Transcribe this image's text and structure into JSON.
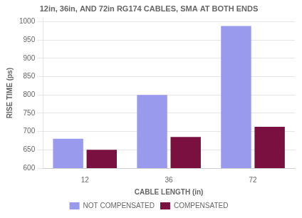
{
  "chart_data": {
    "type": "bar",
    "title": "12in, 36in, AND 72in RG174 CABLES, SMA AT BOTH ENDS",
    "xlabel": "CABLE LENGTH (in)",
    "ylabel": "RISE TIME (ps)",
    "categories": [
      "12",
      "36",
      "72"
    ],
    "series": [
      {
        "name": "NOT COMPENSATED",
        "color": "#9999ee",
        "values": [
          680,
          800,
          988
        ]
      },
      {
        "name": "COMPENSATED",
        "color": "#7a1040",
        "values": [
          650,
          685,
          713
        ]
      }
    ],
    "ylim": [
      600,
      1010
    ],
    "yticks": [
      600,
      650,
      700,
      750,
      800,
      850,
      900,
      950,
      1000
    ],
    "grid": true,
    "legend": "bottom"
  }
}
